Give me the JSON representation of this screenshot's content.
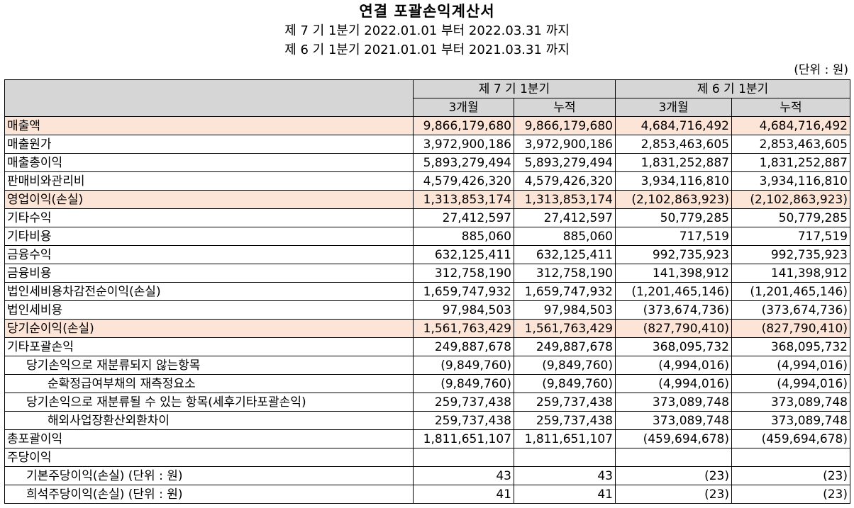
{
  "title": "연결 포괄손익계산서",
  "periods": [
    "제 7 기 1분기 2022.01.01 부터 2022.03.31 까지",
    "제 6 기 1분기 2021.01.01 부터 2021.03.31 까지"
  ],
  "unit": "(단위 : 원)",
  "header": {
    "period7": "제 7 기 1분기",
    "period6": "제 6 기 1분기",
    "sub": [
      "3개월",
      "누적",
      "3개월",
      "누적"
    ]
  },
  "rows": [
    {
      "label": "매출액",
      "values": [
        "9,866,179,680",
        "9,866,179,680",
        "4,684,716,492",
        "4,684,716,492"
      ]
    },
    {
      "label": "매출원가",
      "values": [
        "3,972,900,186",
        "3,972,900,186",
        "2,853,463,605",
        "2,853,463,605"
      ]
    },
    {
      "label": "매출총이익",
      "values": [
        "5,893,279,494",
        "5,893,279,494",
        "1,831,252,887",
        "1,831,252,887"
      ]
    },
    {
      "label": "판매비와관리비",
      "values": [
        "4,579,426,320",
        "4,579,426,320",
        "3,934,116,810",
        "3,934,116,810"
      ]
    },
    {
      "label": "영업이익(손실)",
      "values": [
        "1,313,853,174",
        "1,313,853,174",
        "(2,102,863,923)",
        "(2,102,863,923)"
      ]
    },
    {
      "label": "기타수익",
      "values": [
        "27,412,597",
        "27,412,597",
        "50,779,285",
        "50,779,285"
      ]
    },
    {
      "label": "기타비용",
      "values": [
        "885,060",
        "885,060",
        "717,519",
        "717,519"
      ]
    },
    {
      "label": "금융수익",
      "values": [
        "632,125,411",
        "632,125,411",
        "992,735,923",
        "992,735,923"
      ]
    },
    {
      "label": "금융비용",
      "values": [
        "312,758,190",
        "312,758,190",
        "141,398,912",
        "141,398,912"
      ]
    },
    {
      "label": "법인세비용차감전순이익(손실)",
      "values": [
        "1,659,747,932",
        "1,659,747,932",
        "(1,201,465,146)",
        "(1,201,465,146)"
      ]
    },
    {
      "label": "법인세비용",
      "values": [
        "97,984,503",
        "97,984,503",
        "(373,674,736)",
        "(373,674,736)"
      ]
    },
    {
      "label": "당기순이익(손실)",
      "values": [
        "1,561,763,429",
        "1,561,763,429",
        "(827,790,410)",
        "(827,790,410)"
      ]
    },
    {
      "label": "기타포괄손익",
      "values": [
        "249,887,678",
        "249,887,678",
        "368,095,732",
        "368,095,732"
      ]
    },
    {
      "label": "당기손익으로 재분류되지 않는항목",
      "values": [
        "(9,849,760)",
        "(9,849,760)",
        "(4,994,016)",
        "(4,994,016)"
      ]
    },
    {
      "label": "순확정급여부채의 재측정요소",
      "values": [
        "(9,849,760)",
        "(9,849,760)",
        "(4,994,016)",
        "(4,994,016)"
      ]
    },
    {
      "label": "당기손익으로 재분류될 수 있는 항목(세후기타포괄손익)",
      "values": [
        "259,737,438",
        "259,737,438",
        "373,089,748",
        "373,089,748"
      ]
    },
    {
      "label": "해외사업장환산외환차이",
      "values": [
        "259,737,438",
        "259,737,438",
        "373,089,748",
        "373,089,748"
      ]
    },
    {
      "label": "총포괄이익",
      "values": [
        "1,811,651,107",
        "1,811,651,107",
        "(459,694,678)",
        "(459,694,678)"
      ]
    },
    {
      "label": "주당이익",
      "values": [
        "",
        "",
        "",
        ""
      ]
    },
    {
      "label": "기본주당이익(손실) (단위 : 원)",
      "values": [
        "43",
        "43",
        "(23)",
        "(23)"
      ]
    },
    {
      "label": "희석주당이익(손실) (단위 : 원)",
      "values": [
        "41",
        "41",
        "(23)",
        "(23)"
      ]
    }
  ]
}
